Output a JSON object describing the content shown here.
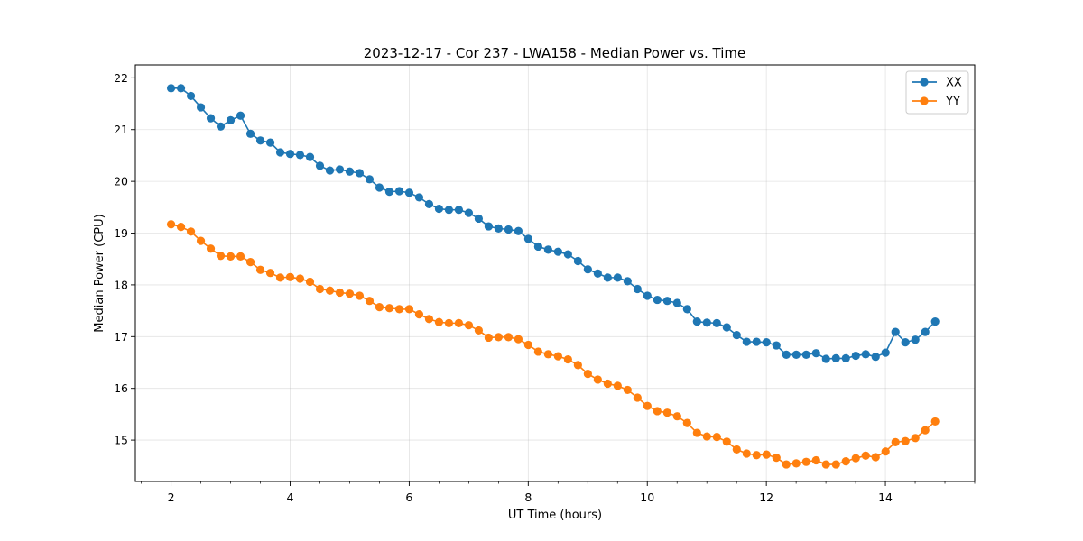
{
  "chart_data": {
    "type": "line",
    "title": "2023-12-17 - Cor 237 - LWA158 - Median Power vs. Time",
    "xlabel": "UT Time (hours)",
    "ylabel": "Median Power (CPU)",
    "xlim": [
      1.4,
      15.5
    ],
    "ylim": [
      14.2,
      22.25
    ],
    "xticks": [
      2,
      4,
      6,
      8,
      10,
      12,
      14
    ],
    "xtick_labels": [
      "2",
      "4",
      "6",
      "8",
      "10",
      "12",
      "14"
    ],
    "yticks": [
      15,
      16,
      17,
      18,
      19,
      20,
      21,
      22
    ],
    "ytick_labels": [
      "15",
      "16",
      "17",
      "18",
      "19",
      "20",
      "21",
      "22"
    ],
    "x_minor_step": 0.5,
    "grid": true,
    "legend_position": "top-right",
    "x_start": 2.0,
    "x_step": 0.1667,
    "series": [
      {
        "name": "XX",
        "color": "#1f77b4",
        "values": [
          21.8,
          21.8,
          21.65,
          21.43,
          21.22,
          21.06,
          21.18,
          21.27,
          20.92,
          20.79,
          20.75,
          20.56,
          20.53,
          20.51,
          20.47,
          20.3,
          20.21,
          20.23,
          20.19,
          20.16,
          20.04,
          19.88,
          19.8,
          19.81,
          19.78,
          19.69,
          19.56,
          19.47,
          19.45,
          19.45,
          19.39,
          19.28,
          19.13,
          19.09,
          19.07,
          19.04,
          18.89,
          18.74,
          18.68,
          18.64,
          18.59,
          18.46,
          18.3,
          18.22,
          18.14,
          18.14,
          18.07,
          17.92,
          17.79,
          17.71,
          17.69,
          17.65,
          17.53,
          17.29,
          17.27,
          17.26,
          17.18,
          17.03,
          16.9,
          16.9,
          16.89,
          16.83,
          16.65,
          16.65,
          16.65,
          16.68,
          16.57,
          16.58,
          16.58,
          16.63,
          16.66,
          16.61,
          16.69,
          17.09,
          16.89,
          16.94,
          17.09,
          17.29
        ]
      },
      {
        "name": "YY",
        "color": "#ff7f0e",
        "values": [
          19.17,
          19.12,
          19.03,
          18.85,
          18.7,
          18.56,
          18.55,
          18.55,
          18.44,
          18.29,
          18.23,
          18.14,
          18.15,
          18.12,
          18.06,
          17.92,
          17.89,
          17.85,
          17.83,
          17.79,
          17.69,
          17.57,
          17.55,
          17.53,
          17.53,
          17.43,
          17.34,
          17.28,
          17.26,
          17.26,
          17.22,
          17.12,
          16.98,
          16.99,
          16.99,
          16.95,
          16.84,
          16.71,
          16.66,
          16.62,
          16.56,
          16.45,
          16.28,
          16.17,
          16.09,
          16.05,
          15.97,
          15.82,
          15.66,
          15.56,
          15.53,
          15.46,
          15.33,
          15.14,
          15.07,
          15.06,
          14.97,
          14.82,
          14.74,
          14.71,
          14.72,
          14.66,
          14.53,
          14.55,
          14.58,
          14.61,
          14.53,
          14.53,
          14.59,
          14.65,
          14.7,
          14.67,
          14.78,
          14.96,
          14.98,
          15.04,
          15.19,
          15.36
        ]
      }
    ]
  }
}
